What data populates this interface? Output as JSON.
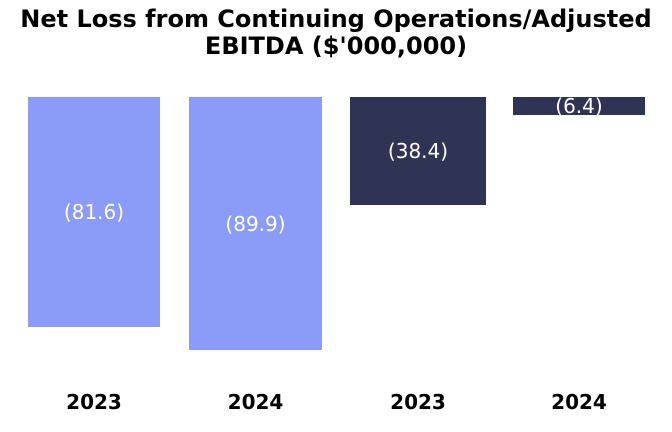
{
  "title_lines": [
    "Net Loss from Continuing Operations/Adjusted",
    "EBITDA ($'000,000)"
  ],
  "colors": {
    "net_loss_bar": "#8A9BF8",
    "adjusted_ebitda_bar": "#2F3455",
    "bar_value_text": "#FFFFFF",
    "title_text": "#000000",
    "background": "#FFFFFF"
  },
  "chart_data": {
    "type": "bar",
    "title": "Net Loss from Continuing Operations/Adjusted EBITDA ($'000,000)",
    "unit": "$'000,000",
    "categories": [
      "2023",
      "2024",
      "2023",
      "2024"
    ],
    "orientation": "vertical, negative values hanging down from zero baseline at top",
    "ylim": [
      -89.9,
      0
    ],
    "grid": false,
    "legend_position": "none",
    "axes_visible": false,
    "series": [
      {
        "name": "Net Loss from Continuing Operations",
        "color": "#8A9BF8",
        "points": [
          {
            "category": "2023",
            "value": -81.6,
            "label": "(81.6)"
          },
          {
            "category": "2024",
            "value": -89.9,
            "label": "(89.9)"
          }
        ]
      },
      {
        "name": "Adjusted EBITDA",
        "color": "#2F3455",
        "points": [
          {
            "category": "2023",
            "value": -38.4,
            "label": "(38.4)"
          },
          {
            "category": "2024",
            "value": -6.4,
            "label": "(6.4)"
          }
        ]
      }
    ],
    "bars": [
      {
        "category": "2023",
        "value": -81.6,
        "label": "(81.6)",
        "color": "#8A9BF8"
      },
      {
        "category": "2024",
        "value": -89.9,
        "label": "(89.9)",
        "color": "#8A9BF8"
      },
      {
        "category": "2023",
        "value": -38.4,
        "label": "(38.4)",
        "color": "#2F3455"
      },
      {
        "category": "2024",
        "value": -6.4,
        "label": "(6.4)",
        "color": "#2F3455"
      }
    ]
  }
}
